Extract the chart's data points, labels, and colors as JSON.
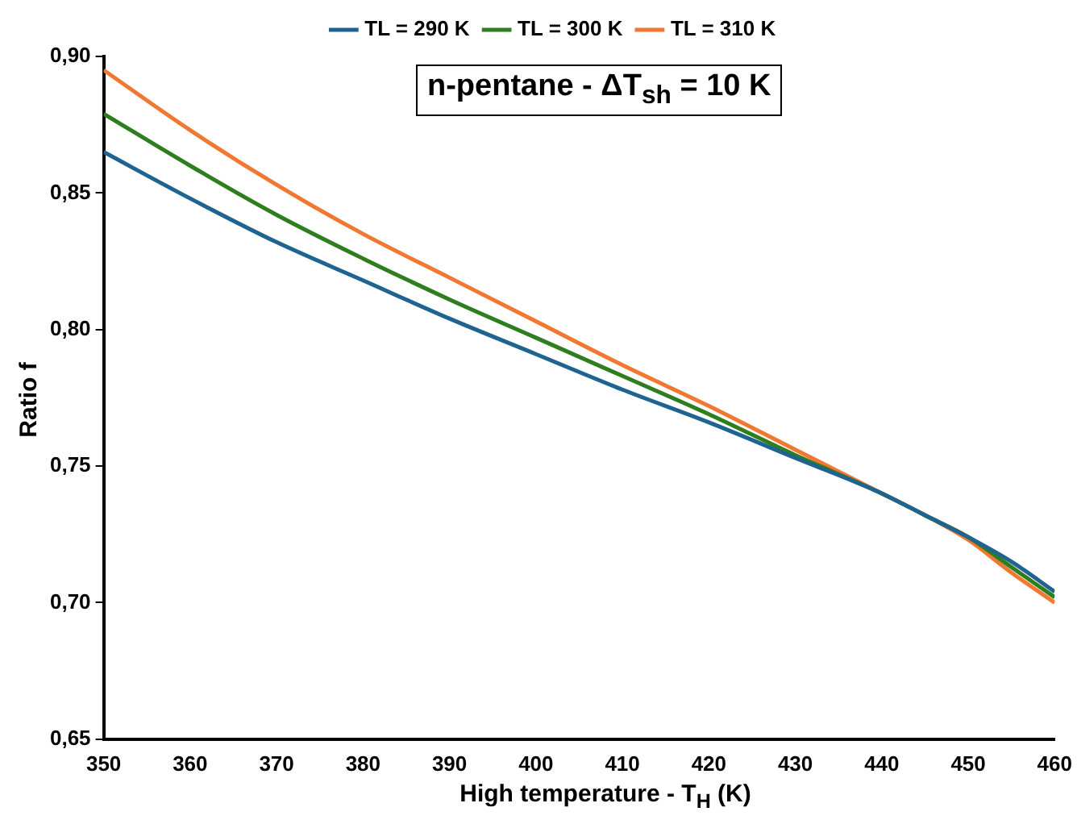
{
  "chart_data": {
    "type": "line",
    "title": "n-pentane - ΔT$_{sh}$ = 10 K",
    "xlabel": "High temperature - T$_{H}$ (K)",
    "ylabel": "Ratio f",
    "x": [
      350,
      360,
      370,
      380,
      390,
      400,
      410,
      420,
      430,
      440,
      445,
      450,
      455,
      460
    ],
    "series": [
      {
        "name": "TL = 290 K",
        "color": "#1f6391",
        "values": [
          0.865,
          0.848,
          0.832,
          0.818,
          0.804,
          0.791,
          0.778,
          0.766,
          0.753,
          0.74,
          0.732,
          0.724,
          0.715,
          0.704
        ]
      },
      {
        "name": "TL = 300 K",
        "color": "#2e7d1e",
        "values": [
          0.879,
          0.86,
          0.842,
          0.826,
          0.811,
          0.797,
          0.783,
          0.769,
          0.754,
          0.74,
          0.732,
          0.724,
          0.713,
          0.702
        ]
      },
      {
        "name": "TL = 310 K",
        "color": "#f07832",
        "values": [
          0.895,
          0.873,
          0.853,
          0.835,
          0.819,
          0.803,
          0.787,
          0.772,
          0.756,
          0.74,
          0.732,
          0.723,
          0.711,
          0.7
        ]
      }
    ],
    "xlim": [
      350,
      460
    ],
    "xticks": [
      350,
      360,
      370,
      380,
      390,
      400,
      410,
      420,
      430,
      440,
      450,
      460
    ],
    "ylim": [
      0.65,
      0.9
    ],
    "yticks": [
      {
        "value": 0.65,
        "label": "0,65"
      },
      {
        "value": 0.7,
        "label": "0,70"
      },
      {
        "value": 0.75,
        "label": "0,75"
      },
      {
        "value": 0.8,
        "label": "0,80"
      },
      {
        "value": 0.85,
        "label": "0,85"
      },
      {
        "value": 0.9,
        "label": "0,90"
      }
    ],
    "grid": false,
    "legend": "top",
    "marker": "none",
    "line_style": "solid"
  }
}
